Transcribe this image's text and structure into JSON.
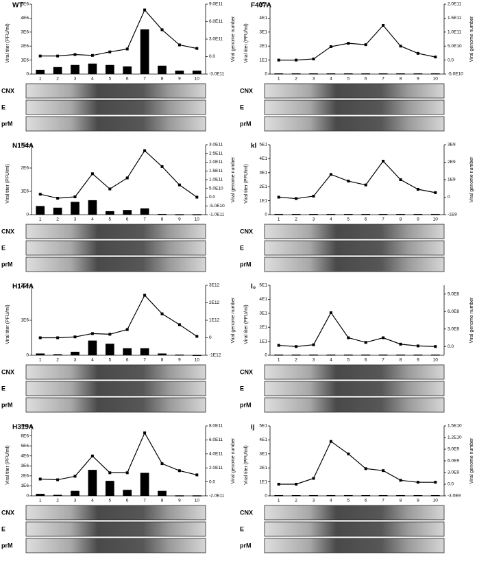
{
  "chart_data": [
    {
      "type": "combo",
      "title": "WT",
      "ylabel": "Viral titer (PFU/ml)",
      "y2label": "Viral genome number",
      "categories": [
        "1",
        "2",
        "3",
        "4",
        "5",
        "6",
        "7",
        "8",
        "9",
        "10"
      ],
      "ylim": [
        0,
        5000000
      ],
      "yticks": [
        0,
        {
          "value": 1000000,
          "label": "1E6"
        },
        {
          "value": 2000000,
          "label": "2E6"
        },
        {
          "value": 3000000,
          "label": "3E6"
        },
        {
          "value": 4000000,
          "label": "4E6"
        },
        {
          "value": 5000000,
          "label": "5E6"
        }
      ],
      "y2lim": [
        -300000000000,
        900000000000
      ],
      "y2ticks": [
        {
          "value": -300000000000,
          "label": "-3.0E11"
        },
        {
          "value": 0,
          "label": "0.0"
        },
        {
          "value": 300000000000,
          "label": "3.0E11"
        },
        {
          "value": 600000000000,
          "label": "6.0E11"
        },
        {
          "value": 900000000000,
          "label": "9.0E11"
        }
      ],
      "series": [
        {
          "type": "bar",
          "color": "#000000",
          "values": [
            300000,
            500000,
            650000,
            750000,
            650000,
            550000,
            3200000,
            600000,
            250000,
            250000
          ]
        },
        {
          "type": "line",
          "axis": "y2",
          "color": "#000000",
          "values": [
            10000000000,
            10000000000,
            35000000000,
            20000000000,
            80000000000,
            130000000000,
            800000000000,
            460000000000,
            200000000000,
            140000000000
          ]
        }
      ],
      "blot_labels": [
        "CNX",
        "E",
        "prM"
      ]
    },
    {
      "type": "combo",
      "title": "F407A",
      "ylabel": "Viral titer (PFU/ml)",
      "y2label": "Viral genome number",
      "categories": [
        "1",
        "2",
        "3",
        "4",
        "5",
        "6",
        "7",
        "8",
        "9",
        "10"
      ],
      "ylim": [
        0,
        50
      ],
      "yticks": [
        0,
        {
          "value": 10,
          "label": "1E1"
        },
        {
          "value": 20,
          "label": "2E1"
        },
        {
          "value": 30,
          "label": "3E1"
        },
        {
          "value": 40,
          "label": "4E1"
        },
        {
          "value": 50,
          "label": "5E1"
        }
      ],
      "y2lim": [
        -50000000000,
        200000000000
      ],
      "y2ticks": [
        {
          "value": -50000000000,
          "label": "-5.0E10"
        },
        {
          "value": 0,
          "label": "0.0"
        },
        {
          "value": 50000000000,
          "label": "5.0E10"
        },
        {
          "value": 100000000000,
          "label": "1.0E11"
        },
        {
          "value": 150000000000,
          "label": "1.5E11"
        },
        {
          "value": 200000000000,
          "label": "2.0E11"
        }
      ],
      "series": [
        {
          "type": "bar",
          "color": "#000000",
          "values": [
            0.5,
            0.5,
            0.5,
            0.5,
            0.5,
            0.5,
            0.5,
            0.5,
            0.5,
            0.5
          ]
        },
        {
          "type": "line",
          "axis": "y2",
          "color": "#000000",
          "values": [
            0,
            0,
            4000000000,
            48000000000,
            60000000000,
            55000000000,
            124000000000,
            50000000000,
            24000000000,
            11000000000
          ]
        }
      ],
      "blot_labels": [
        "CNX",
        "E",
        "prM"
      ]
    },
    {
      "type": "combo",
      "title": "N154A",
      "ylabel": "Viral titer (PFU/ml)",
      "y2label": "Viral genome number",
      "categories": [
        "1",
        "2",
        "3",
        "4",
        "5",
        "6",
        "7",
        "8",
        "9",
        "10"
      ],
      "ylim": [
        0,
        3000000
      ],
      "yticks": [
        0,
        {
          "value": 1000000,
          "label": "1E6"
        },
        {
          "value": 2000000,
          "label": "2E6"
        },
        {
          "value": 3000000,
          "label": "3E6"
        }
      ],
      "y2lim": [
        -100000000000,
        300000000000
      ],
      "y2ticks": [
        {
          "value": -100000000000,
          "label": "-1.0E11"
        },
        {
          "value": -50000000000,
          "label": "-5.0E10"
        },
        {
          "value": 0,
          "label": "0.0"
        },
        {
          "value": 50000000000,
          "label": "5.0E10"
        },
        {
          "value": 100000000000,
          "label": "1.0E11"
        },
        {
          "value": 150000000000,
          "label": "1.5E11"
        },
        {
          "value": 200000000000,
          "label": "2.0E11"
        },
        {
          "value": 250000000000,
          "label": "2.5E11"
        },
        {
          "value": 300000000000,
          "label": "3.0E11"
        }
      ],
      "series": [
        {
          "type": "bar",
          "color": "#000000",
          "values": [
            370000,
            300000,
            550000,
            620000,
            150000,
            200000,
            270000,
            30000,
            20000,
            20000
          ]
        },
        {
          "type": "line",
          "axis": "y2",
          "color": "#000000",
          "values": [
            17000000000,
            -6000000000,
            2000000000,
            134000000000,
            47000000000,
            110000000000,
            266000000000,
            175000000000,
            70000000000,
            0
          ]
        }
      ],
      "blot_labels": [
        "CNX",
        "E",
        "prM"
      ]
    },
    {
      "type": "combo",
      "title": "kl",
      "ylabel": "Viral titer (PFU/ml)",
      "y2label": "Viral genome number",
      "categories": [
        "1",
        "2",
        "3",
        "4",
        "5",
        "6",
        "7",
        "8",
        "9",
        "10"
      ],
      "ylim": [
        0,
        50
      ],
      "yticks": [
        0,
        {
          "value": 10,
          "label": "1E1"
        },
        {
          "value": 20,
          "label": "2E1"
        },
        {
          "value": 30,
          "label": "3E1"
        },
        {
          "value": 40,
          "label": "4E1"
        },
        {
          "value": 50,
          "label": "5E1"
        }
      ],
      "y2lim": [
        -1000000000,
        3000000000
      ],
      "y2ticks": [
        {
          "value": -1000000000,
          "label": "-1E9"
        },
        0,
        {
          "value": 1000000000,
          "label": "1E9"
        },
        {
          "value": 2000000000,
          "label": "2E9"
        },
        {
          "value": 3000000000,
          "label": "3E9"
        }
      ],
      "series": [
        {
          "type": "bar",
          "color": "#000000",
          "values": [
            0.5,
            0.5,
            0.5,
            0.5,
            0.5,
            0.5,
            0.5,
            0.5,
            0.5,
            0.5
          ]
        },
        {
          "type": "line",
          "axis": "y2",
          "color": "#000000",
          "values": [
            0,
            -80000000,
            60000000,
            1300000000,
            920000000,
            700000000,
            2060000000,
            1000000000,
            450000000,
            260000000
          ]
        }
      ],
      "blot_labels": [
        "CNX",
        "E",
        "prM"
      ]
    },
    {
      "type": "combo",
      "title": "H144A",
      "ylabel": "Viral titer (PFU/ml)",
      "y2label": "Viral genome number",
      "categories": [
        "1",
        "2",
        "3",
        "4",
        "5",
        "6",
        "7",
        "8",
        "9",
        "10"
      ],
      "ylim": [
        0,
        2000000
      ],
      "yticks": [
        0,
        {
          "value": 1000000,
          "label": "1E6"
        },
        {
          "value": 2000000,
          "label": "2E6"
        }
      ],
      "y2lim": [
        -1000000000000,
        3000000000000
      ],
      "y2ticks": [
        {
          "value": -1000000000000,
          "label": "-1E12"
        },
        0,
        {
          "value": 1000000000000,
          "label": "1E12"
        },
        {
          "value": 2000000000000,
          "label": "2E12"
        },
        {
          "value": 3000000000000,
          "label": "3E12"
        }
      ],
      "series": [
        {
          "type": "bar",
          "color": "#000000",
          "values": [
            50000,
            30000,
            100000,
            420000,
            330000,
            200000,
            200000,
            50000,
            20000,
            10000
          ]
        },
        {
          "type": "line",
          "axis": "y2",
          "color": "#000000",
          "values": [
            0,
            0,
            50000000000,
            240000000000,
            200000000000,
            470000000000,
            2430000000000,
            1370000000000,
            750000000000,
            80000000000
          ]
        }
      ],
      "blot_labels": [
        "CNX",
        "E",
        "prM"
      ]
    },
    {
      "type": "combo",
      "title": "I₀",
      "ylabel": "Viral titer (PFU/ml)",
      "y2label": "Viral genome number",
      "categories": [
        "1",
        "2",
        "3",
        "4",
        "5",
        "6",
        "7",
        "8",
        "9",
        "10"
      ],
      "ylim": [
        0,
        50
      ],
      "yticks": [
        0,
        {
          "value": 10,
          "label": "1E1"
        },
        {
          "value": 20,
          "label": "2E1"
        },
        {
          "value": 30,
          "label": "3E1"
        },
        {
          "value": 40,
          "label": "4E1"
        },
        {
          "value": 50,
          "label": "5E1"
        }
      ],
      "y2lim": [
        -150000000,
        1050000000
      ],
      "y2ticks": [
        {
          "value": 0,
          "label": "0.0"
        },
        {
          "value": 300000000,
          "label": "3.0E8"
        },
        {
          "value": 600000000,
          "label": "6.0E8"
        },
        {
          "value": 900000000,
          "label": "9.0E8"
        }
      ],
      "series": [
        {
          "type": "bar",
          "color": "#000000",
          "values": [
            0.5,
            0.5,
            0.5,
            0.5,
            0.5,
            0.5,
            0.5,
            0.5,
            0.5,
            0.5
          ]
        },
        {
          "type": "line",
          "axis": "y2",
          "color": "#000000",
          "values": [
            20000000,
            0,
            30000000,
            580000000,
            150000000,
            70000000,
            150000000,
            40000000,
            10000000,
            0
          ]
        }
      ],
      "blot_labels": [
        "CNX",
        "E",
        "prM"
      ]
    },
    {
      "type": "combo",
      "title": "H319A",
      "ylabel": "Viral titer (PFU/ml)",
      "y2label": "Viral genome number",
      "categories": [
        "1",
        "2",
        "3",
        "4",
        "5",
        "6",
        "7",
        "8",
        "9",
        "10"
      ],
      "ylim": [
        0,
        7000000
      ],
      "yticks": [
        0,
        {
          "value": 1000000,
          "label": "1E6"
        },
        {
          "value": 2000000,
          "label": "2E6"
        },
        {
          "value": 3000000,
          "label": "3E6"
        },
        {
          "value": 4000000,
          "label": "4E6"
        },
        {
          "value": 5000000,
          "label": "5E6"
        },
        {
          "value": 6000000,
          "label": "6E6"
        },
        {
          "value": 7000000,
          "label": "7E6"
        }
      ],
      "y2lim": [
        -200000000000,
        800000000000
      ],
      "y2ticks": [
        {
          "value": -200000000000,
          "label": "-2.0E11"
        },
        {
          "value": 0,
          "label": "0.0"
        },
        {
          "value": 200000000000,
          "label": "2.0E11"
        },
        {
          "value": 400000000000,
          "label": "4.0E11"
        },
        {
          "value": 600000000000,
          "label": "6.0E11"
        },
        {
          "value": 800000000000,
          "label": "8.0E11"
        }
      ],
      "series": [
        {
          "type": "bar",
          "color": "#000000",
          "values": [
            200000,
            100000,
            500000,
            2600000,
            1500000,
            600000,
            2300000,
            500000,
            50000,
            50000
          ]
        },
        {
          "type": "line",
          "axis": "y2",
          "color": "#000000",
          "values": [
            40000000000,
            30000000000,
            80000000000,
            370000000000,
            130000000000,
            130000000000,
            700000000000,
            260000000000,
            160000000000,
            100000000000
          ]
        }
      ],
      "blot_labels": [
        "CNX",
        "E",
        "prM"
      ]
    },
    {
      "type": "combo",
      "title": "ij",
      "ylabel": "Viral titer (PFU/ml)",
      "y2label": "Viral genome number",
      "categories": [
        "1",
        "2",
        "3",
        "4",
        "5",
        "6",
        "7",
        "8",
        "9",
        "10"
      ],
      "ylim": [
        0,
        50
      ],
      "yticks": [
        0,
        {
          "value": 10,
          "label": "1E1"
        },
        {
          "value": 20,
          "label": "2E1"
        },
        {
          "value": 30,
          "label": "3E1"
        },
        {
          "value": 40,
          "label": "4E1"
        },
        {
          "value": 50,
          "label": "5E1"
        }
      ],
      "y2lim": [
        -3000000000,
        15000000000
      ],
      "y2ticks": [
        {
          "value": -3000000000,
          "label": "-3.0E9"
        },
        {
          "value": 0,
          "label": "0.0"
        },
        {
          "value": 3000000000,
          "label": "3.0E9"
        },
        {
          "value": 6000000000,
          "label": "6.0E9"
        },
        {
          "value": 9000000000,
          "label": "9.0E9"
        },
        {
          "value": 12000000000,
          "label": "1.2E10"
        },
        {
          "value": 15000000000,
          "label": "1.5E10"
        }
      ],
      "series": [
        {
          "type": "bar",
          "color": "#000000",
          "values": [
            0.5,
            0.5,
            0.5,
            0.5,
            0.5,
            0.5,
            0.5,
            0.5,
            0.5,
            0.5
          ]
        },
        {
          "type": "line",
          "axis": "y2",
          "color": "#000000",
          "values": [
            0,
            0,
            1500000000,
            11000000000,
            7800000000,
            4000000000,
            3500000000,
            1000000000,
            500000000,
            500000000
          ]
        }
      ],
      "blot_labels": [
        "CNX",
        "E",
        "prM"
      ]
    }
  ]
}
